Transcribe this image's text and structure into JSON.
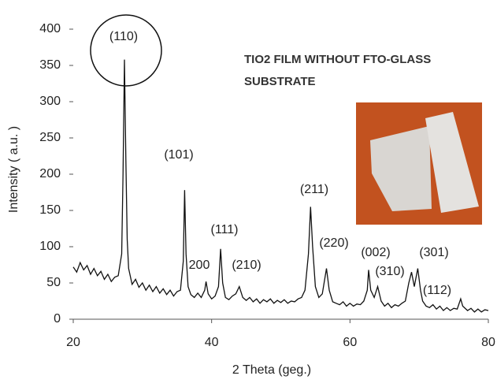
{
  "chart_data": {
    "type": "line",
    "title_lines": [
      "TIO2 FILM WITHOUT FTO-GLASS",
      "SUBSTRATE"
    ],
    "x_label": "2 Theta (geg.)",
    "y_label": "Intensity ( a.u. )",
    "annotations": [
      "(110)",
      "(101)",
      "(111)",
      "200",
      "(210)",
      "(211)",
      "(220)",
      "(002)",
      "(310)",
      "(301)",
      "(112)"
    ],
    "color": "#111111",
    "xlim": [
      20,
      80
    ],
    "xticks": [
      20,
      40,
      60,
      80
    ],
    "ylim": [
      0,
      400
    ],
    "yticks": [
      0,
      50,
      100,
      150,
      200,
      250,
      300,
      350,
      400
    ],
    "x": [
      20,
      20.5,
      21,
      21.5,
      22,
      22.5,
      23,
      23.5,
      24,
      24.5,
      25,
      25.5,
      26,
      26.5,
      27,
      27.2,
      27.4,
      27.6,
      27.8,
      28,
      28.5,
      29,
      29.5,
      30,
      30.5,
      31,
      31.5,
      32,
      32.5,
      33,
      33.5,
      34,
      34.5,
      35,
      35.5,
      35.9,
      36.1,
      36.3,
      36.6,
      37,
      37.5,
      38,
      38.5,
      39,
      39.2,
      39.5,
      40,
      40.5,
      41,
      41.3,
      41.6,
      42,
      42.5,
      43,
      43.5,
      44,
      44.5,
      45,
      45.5,
      46,
      46.5,
      47,
      47.5,
      48,
      48.5,
      49,
      49.5,
      50,
      50.5,
      51,
      51.5,
      52,
      52.5,
      53,
      53.5,
      54,
      54.3,
      54.6,
      55,
      55.5,
      56,
      56.6,
      57,
      57.5,
      58,
      58.5,
      59,
      59.5,
      60,
      60.5,
      61,
      61.5,
      62,
      62.5,
      62.7,
      63,
      63.5,
      64,
      64.5,
      65,
      65.5,
      66,
      66.5,
      67,
      67.5,
      68,
      68.5,
      68.9,
      69.3,
      69.8,
      70.2,
      70.5,
      71,
      71.5,
      72,
      72.5,
      73,
      73.5,
      74,
      74.5,
      75,
      75.5,
      76,
      76.3,
      77,
      77.5,
      78,
      78.5,
      79,
      79.5,
      80
    ],
    "values": [
      72,
      65,
      78,
      68,
      74,
      62,
      70,
      60,
      66,
      55,
      62,
      52,
      58,
      60,
      90,
      200,
      358,
      220,
      110,
      70,
      48,
      55,
      44,
      50,
      40,
      47,
      38,
      45,
      36,
      42,
      34,
      40,
      32,
      38,
      40,
      80,
      178,
      90,
      45,
      34,
      30,
      36,
      30,
      40,
      52,
      35,
      28,
      32,
      45,
      97,
      50,
      30,
      27,
      32,
      35,
      45,
      30,
      26,
      30,
      24,
      28,
      22,
      27,
      24,
      28,
      22,
      26,
      23,
      27,
      22,
      25,
      24,
      28,
      30,
      40,
      90,
      155,
      100,
      45,
      30,
      35,
      70,
      40,
      24,
      22,
      20,
      24,
      18,
      22,
      18,
      21,
      20,
      25,
      40,
      68,
      40,
      30,
      45,
      25,
      18,
      22,
      16,
      20,
      18,
      22,
      25,
      50,
      65,
      45,
      70,
      40,
      25,
      18,
      16,
      20,
      14,
      18,
      12,
      16,
      12,
      15,
      14,
      28,
      18,
      12,
      15,
      10,
      14,
      10,
      13,
      12
    ]
  }
}
